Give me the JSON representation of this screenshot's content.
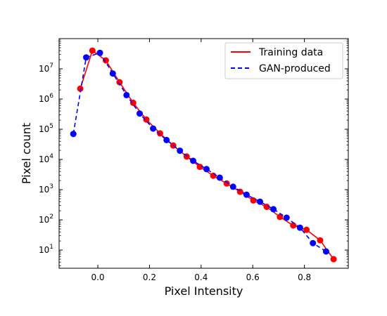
{
  "chart_data": {
    "type": "line",
    "title": "",
    "xlabel": "Pixel Intensity",
    "ylabel": "Pixel count",
    "xlim": [
      -0.15,
      0.97
    ],
    "ylim": [
      2.5,
      100000000
    ],
    "yscale": "log",
    "grid": false,
    "legend_position": "top-right",
    "x_ticks": [
      {
        "value": 0.0,
        "label": "0.0"
      },
      {
        "value": 0.2,
        "label": "0.2"
      },
      {
        "value": 0.4,
        "label": "0.4"
      },
      {
        "value": 0.6,
        "label": "0.6"
      },
      {
        "value": 0.8,
        "label": "0.8"
      }
    ],
    "y_ticks": [
      {
        "value": 10,
        "base": "10",
        "exp": "1"
      },
      {
        "value": 100,
        "base": "10",
        "exp": "2"
      },
      {
        "value": 1000,
        "base": "10",
        "exp": "3"
      },
      {
        "value": 10000,
        "base": "10",
        "exp": "4"
      },
      {
        "value": 100000,
        "base": "10",
        "exp": "5"
      },
      {
        "value": 1000000,
        "base": "10",
        "exp": "6"
      },
      {
        "value": 10000000,
        "base": "10",
        "exp": "7"
      }
    ],
    "series": [
      {
        "name": "Training data",
        "color": "#ff0000",
        "line_style": "solid",
        "x": [
          -0.068,
          -0.021,
          0.031,
          0.084,
          0.137,
          0.188,
          0.241,
          0.292,
          0.344,
          0.395,
          0.447,
          0.499,
          0.551,
          0.602,
          0.654,
          0.705,
          0.757,
          0.808,
          0.861,
          0.913
        ],
        "y": [
          2200000,
          40000000,
          19000000,
          3600000,
          750000,
          210000,
          73000,
          29000,
          12500,
          5700,
          2900,
          1600,
          850,
          440,
          270,
          125,
          65,
          47,
          21,
          5
        ]
      },
      {
        "name": "GAN-produced",
        "color": "#0000ff",
        "line_style": "dashed",
        "x": [
          -0.095,
          -0.045,
          0.008,
          0.058,
          0.111,
          0.162,
          0.214,
          0.266,
          0.318,
          0.369,
          0.421,
          0.472,
          0.524,
          0.576,
          0.628,
          0.68,
          0.731,
          0.783,
          0.833,
          0.884
        ],
        "y": [
          70000,
          24000000,
          34000000,
          7000000,
          1350000,
          330000,
          105000,
          44000,
          19500,
          9000,
          4800,
          2500,
          1250,
          680,
          400,
          225,
          118,
          55,
          17,
          9
        ]
      }
    ]
  }
}
